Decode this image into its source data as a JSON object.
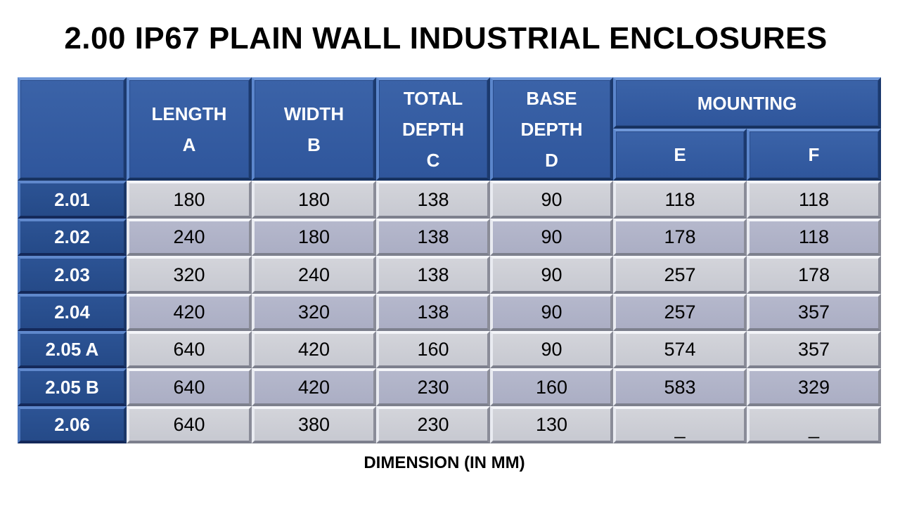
{
  "title": "2.00 IP67 PLAIN WALL INDUSTRIAL ENCLOSURES",
  "table": {
    "corner": "",
    "headers": [
      [
        "LENGTH",
        "A"
      ],
      [
        "WIDTH",
        "B"
      ],
      [
        "TOTAL",
        "DEPTH",
        "C"
      ],
      [
        "BASE",
        "DEPTH",
        "D"
      ]
    ],
    "mounting": {
      "label": "MOUNTING",
      "sub": [
        "E",
        "F"
      ]
    },
    "rows": [
      {
        "model": "2.01",
        "values": [
          "180",
          "180",
          "138",
          "90",
          "118",
          "118"
        ]
      },
      {
        "model": "2.02",
        "values": [
          "240",
          "180",
          "138",
          "90",
          "178",
          "118"
        ]
      },
      {
        "model": "2.03",
        "values": [
          "320",
          "240",
          "138",
          "90",
          "257",
          "178"
        ]
      },
      {
        "model": "2.04",
        "values": [
          "420",
          "320",
          "138",
          "90",
          "257",
          "357"
        ]
      },
      {
        "model": "2.05 A",
        "values": [
          "640",
          "420",
          "160",
          "90",
          "574",
          "357"
        ]
      },
      {
        "model": "2.05 B",
        "values": [
          "640",
          "420",
          "230",
          "160",
          "583",
          "329"
        ]
      },
      {
        "model": "2.06",
        "values": [
          "640",
          "380",
          "230",
          "130",
          "_",
          "_"
        ]
      }
    ]
  },
  "colors": {
    "header_blue": "#3b63a8",
    "row_header_blue": "#2c5394",
    "cell_light": "#cdced5",
    "cell_dark": "#b0b3c8"
  },
  "footer": "DIMENSION (IN MM)"
}
